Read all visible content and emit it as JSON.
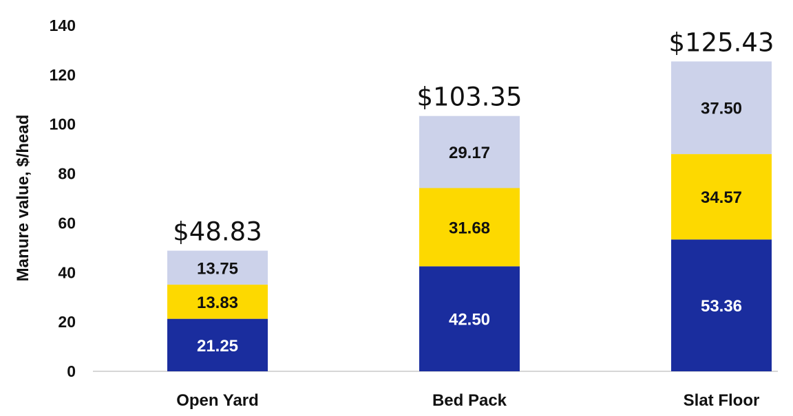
{
  "chart_data": {
    "type": "bar",
    "stacked": true,
    "categories": [
      "Open Yard",
      "Bed Pack",
      "Slat Floor"
    ],
    "series": [
      {
        "values": [
          21.25,
          42.5,
          53.36
        ],
        "labels": [
          "21.25",
          "42.50",
          "53.36"
        ],
        "color": "#1a2d9e",
        "label_color": "#ffffff"
      },
      {
        "values": [
          13.83,
          31.68,
          34.57
        ],
        "labels": [
          "13.83",
          "31.68",
          "34.57"
        ],
        "color": "#fdd900",
        "label_color": "#111111"
      },
      {
        "values": [
          13.75,
          29.17,
          37.5
        ],
        "labels": [
          "13.75",
          "29.17",
          "37.50"
        ],
        "color": "#ccd2ea",
        "label_color": "#111111"
      }
    ],
    "totals": [
      "$48.83",
      "$103.35",
      "$125.43"
    ],
    "ylabel": "Manure value, $/head",
    "xlabel": "",
    "ylim": [
      0,
      140
    ],
    "yticks": [
      "0",
      "20",
      "40",
      "60",
      "80",
      "100",
      "120",
      "140"
    ],
    "grid": false,
    "legend": "none"
  }
}
